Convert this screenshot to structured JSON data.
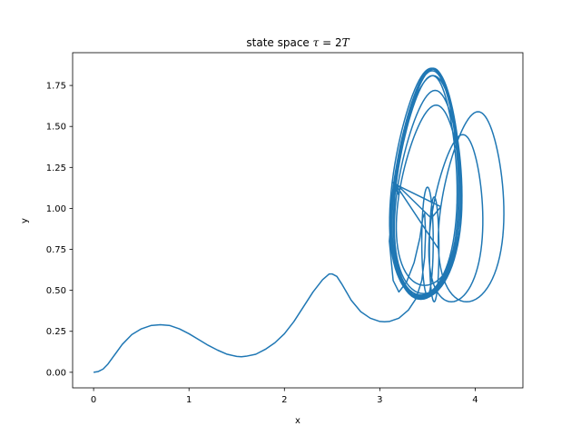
{
  "chart_data": {
    "type": "line",
    "title_prefix": "state space ",
    "title_math_tau": "τ",
    "title_math_rest": " = 2",
    "title_math_T": "T",
    "xlabel": "x",
    "ylabel": "y",
    "xlim": [
      -0.22,
      4.5
    ],
    "ylim": [
      -0.095,
      1.95
    ],
    "xticks": [
      0,
      1,
      2,
      3,
      4
    ],
    "xtick_labels": [
      "0",
      "1",
      "2",
      "3",
      "4"
    ],
    "yticks": [
      0.0,
      0.25,
      0.5,
      0.75,
      1.0,
      1.25,
      1.5,
      1.75
    ],
    "ytick_labels": [
      "0.00",
      "0.25",
      "0.50",
      "0.75",
      "1.00",
      "1.25",
      "1.50",
      "1.75"
    ],
    "grid": false,
    "series_color": "#1f77b4",
    "series": [
      {
        "transient": [
          [
            0.0,
            0.0
          ],
          [
            0.05,
            0.005
          ],
          [
            0.1,
            0.02
          ],
          [
            0.15,
            0.05
          ],
          [
            0.2,
            0.09
          ],
          [
            0.3,
            0.17
          ],
          [
            0.4,
            0.23
          ],
          [
            0.5,
            0.265
          ],
          [
            0.6,
            0.285
          ],
          [
            0.7,
            0.29
          ],
          [
            0.8,
            0.285
          ],
          [
            0.9,
            0.265
          ],
          [
            1.0,
            0.235
          ],
          [
            1.1,
            0.2
          ],
          [
            1.2,
            0.165
          ],
          [
            1.3,
            0.135
          ],
          [
            1.4,
            0.11
          ],
          [
            1.5,
            0.097
          ],
          [
            1.55,
            0.095
          ],
          [
            1.6,
            0.098
          ],
          [
            1.7,
            0.11
          ],
          [
            1.8,
            0.14
          ],
          [
            1.9,
            0.18
          ],
          [
            2.0,
            0.235
          ],
          [
            2.1,
            0.31
          ],
          [
            2.2,
            0.4
          ],
          [
            2.3,
            0.49
          ],
          [
            2.4,
            0.565
          ],
          [
            2.47,
            0.6
          ],
          [
            2.5,
            0.6
          ],
          [
            2.55,
            0.585
          ],
          [
            2.6,
            0.54
          ],
          [
            2.7,
            0.44
          ],
          [
            2.8,
            0.37
          ],
          [
            2.9,
            0.33
          ],
          [
            3.0,
            0.31
          ],
          [
            3.05,
            0.308
          ],
          [
            3.1,
            0.31
          ],
          [
            3.2,
            0.33
          ],
          [
            3.3,
            0.38
          ],
          [
            3.38,
            0.45
          ],
          [
            3.44,
            0.56
          ],
          [
            3.47,
            0.7
          ],
          [
            3.48,
            0.85
          ],
          [
            3.47,
            0.97
          ],
          [
            3.45,
            0.94
          ],
          [
            3.42,
            0.82
          ],
          [
            3.36,
            0.67
          ],
          [
            3.28,
            0.55
          ],
          [
            3.2,
            0.49
          ],
          [
            3.14,
            0.56
          ],
          [
            3.1,
            0.8
          ]
        ],
        "orbits": [
          {
            "cx": 3.49,
            "cy": 1.15,
            "ax": 0.34,
            "ay": 0.69,
            "phase": 0.0
          },
          {
            "cx": 3.5,
            "cy": 1.155,
            "ax": 0.33,
            "ay": 0.7,
            "phase": 0.4
          },
          {
            "cx": 3.48,
            "cy": 1.16,
            "ax": 0.35,
            "ay": 0.695,
            "phase": 0.9
          },
          {
            "cx": 3.5,
            "cy": 1.15,
            "ax": 0.345,
            "ay": 0.7,
            "phase": 1.3
          },
          {
            "cx": 3.49,
            "cy": 1.14,
            "ax": 0.32,
            "ay": 0.67,
            "phase": 1.9
          },
          {
            "cx": 3.5,
            "cy": 1.13,
            "ax": 0.36,
            "ay": 0.68,
            "phase": 2.4
          },
          {
            "cx": 3.49,
            "cy": 1.15,
            "ax": 0.335,
            "ay": 0.705,
            "phase": 2.9
          },
          {
            "cx": 3.52,
            "cy": 1.1,
            "ax": 0.34,
            "ay": 0.62,
            "phase": 3.3
          },
          {
            "cx": 3.53,
            "cy": 1.08,
            "ax": 0.33,
            "ay": 0.55,
            "phase": 3.8
          },
          {
            "cx": 3.5,
            "cy": 1.15,
            "ax": 0.33,
            "ay": 0.7,
            "phase": 4.2
          },
          {
            "cx": 3.81,
            "cy": 0.94,
            "ax": 0.27,
            "ay": 0.51,
            "phase": 4.6
          },
          {
            "cx": 3.97,
            "cy": 1.01,
            "ax": 0.33,
            "ay": 0.58,
            "phase": 5.0
          },
          {
            "cx": 3.49,
            "cy": 1.15,
            "ax": 0.34,
            "ay": 0.7,
            "phase": 5.5
          },
          {
            "cx": 3.5,
            "cy": 1.16,
            "ax": 0.35,
            "ay": 0.69,
            "phase": 6.0
          }
        ],
        "small_loops": [
          {
            "cx": 3.5,
            "cy": 0.8,
            "ax": 0.06,
            "ay": 0.33
          },
          {
            "cx": 3.57,
            "cy": 0.75,
            "ax": 0.05,
            "ay": 0.32
          }
        ]
      }
    ]
  }
}
